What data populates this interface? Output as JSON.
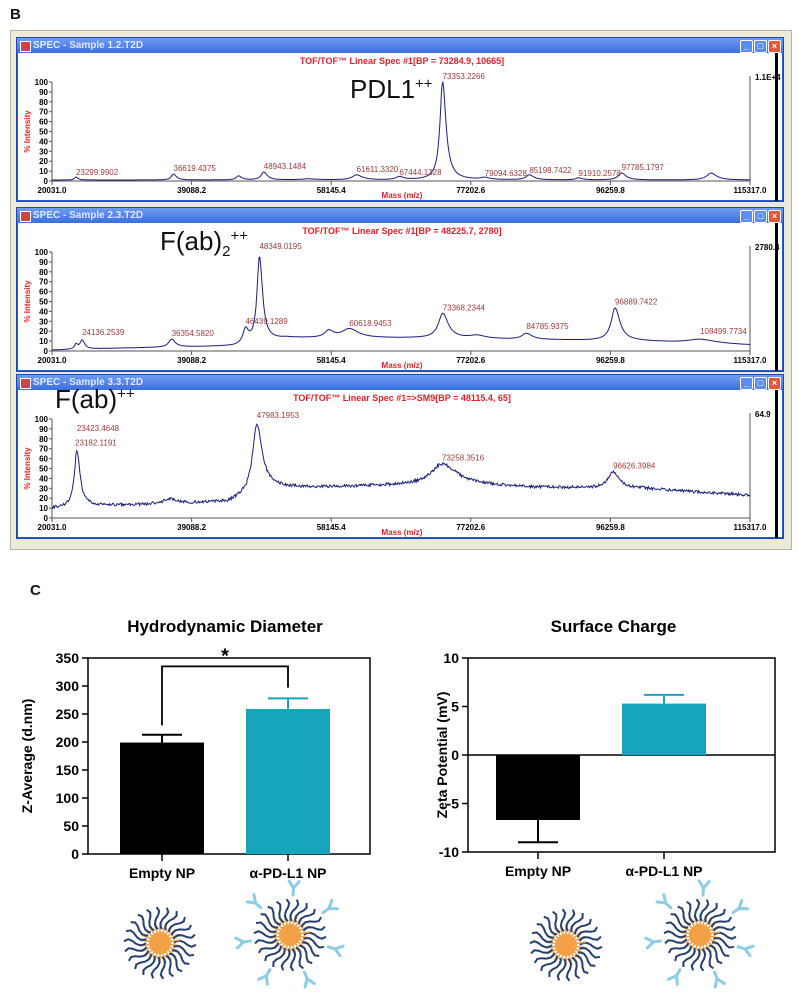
{
  "panel_letters": {
    "b": "B",
    "c": "C"
  },
  "spectra": [
    {
      "window_title": "SPEC - Sample 1.2.T2D",
      "plot_title": "TOF/TOF™ Linear Spec #1[BP = 73284.9, 10665]",
      "overlay_label": {
        "base": "PDL1",
        "sup": "++",
        "sub": ""
      },
      "right_scale": "1.1E+4",
      "ylabel": "% Intensity",
      "xlabel": "Mass (m/z)",
      "noise": 0,
      "peak_labels": [
        {
          "text": "23299.9902",
          "mass": 23300,
          "intensity": 3
        },
        {
          "text": "36619.4375",
          "mass": 36619,
          "intensity": 7
        },
        {
          "text": "48943.1484",
          "mass": 48943,
          "intensity": 9
        },
        {
          "text": "61611.3320",
          "mass": 61611,
          "intensity": 6
        },
        {
          "text": "67444.1328",
          "mass": 67444,
          "intensity": 3
        },
        {
          "text": "73353.2266",
          "mass": 73353,
          "intensity": 100
        },
        {
          "text": "79094.6328",
          "mass": 79094,
          "intensity": 2
        },
        {
          "text": "85198.7422",
          "mass": 85198,
          "intensity": 5
        },
        {
          "text": "91910.2578",
          "mass": 91910,
          "intensity": 2
        },
        {
          "text": "97785.1797",
          "mass": 97785,
          "intensity": 8
        }
      ]
    },
    {
      "window_title": "SPEC - Sample 2.3.T2D",
      "plot_title": "TOF/TOF™ Linear Spec #1[BP = 48225.7, 2780]",
      "overlay_label": {
        "base": "F(ab)",
        "sup": "++",
        "sub": "2"
      },
      "right_scale": "2780.4",
      "ylabel": "% Intensity",
      "xlabel": "Mass (m/z)",
      "noise": 0,
      "peak_labels": [
        {
          "text": "24136.2539",
          "mass": 24136,
          "intensity": 13
        },
        {
          "text": "36354.5820",
          "mass": 36354,
          "intensity": 12
        },
        {
          "text": "46439.1289",
          "mass": 46439,
          "intensity": 24
        },
        {
          "text": "48349.0195",
          "mass": 48349,
          "intensity": 100
        },
        {
          "text": "60618.9453",
          "mass": 60618,
          "intensity": 22
        },
        {
          "text": "73368.2344",
          "mass": 73368,
          "intensity": 38
        },
        {
          "text": "84785.9375",
          "mass": 84786,
          "intensity": 19
        },
        {
          "text": "96889.7422",
          "mass": 96890,
          "intensity": 44
        },
        {
          "text": "108499.7734",
          "mass": 108500,
          "intensity": 14
        }
      ]
    },
    {
      "window_title": "SPEC - Sample 3.3.T2D",
      "plot_title": "TOF/TOF™ Linear Spec #1=>SM9[BP = 48115.4, 65]",
      "overlay_label": {
        "base": "F(ab)",
        "sup": "++",
        "sub": ""
      },
      "right_scale": "64.9",
      "ylabel": "% Intensity",
      "xlabel": "Mass (m/z)",
      "noise": 1.5,
      "peak_labels": [
        {
          "text": "23423.4648",
          "mass": 23423,
          "intensity": 85
        },
        {
          "text": "23182.1191",
          "mass": 23182,
          "intensity": 70
        },
        {
          "text": "47983.1953",
          "mass": 47983,
          "intensity": 98
        },
        {
          "text": "73258.3516",
          "mass": 73258,
          "intensity": 55
        },
        {
          "text": "96626.3984",
          "mass": 96626,
          "intensity": 47
        }
      ]
    }
  ],
  "chart_data": [
    {
      "type": "line",
      "title": "TOF/TOF Linear Spec #1 — Sample 1.2 (PDL1++)",
      "xlabel": "Mass (m/z)",
      "ylabel": "% Intensity",
      "xlim": [
        20031.0,
        115317.0
      ],
      "ylim": [
        0,
        100
      ],
      "xticks": [
        "20031.0",
        "39088.2",
        "58145.4",
        "77202.6",
        "96259.8",
        "115317.0"
      ],
      "yticks": [
        "0",
        "10",
        "20",
        "30",
        "40",
        "50",
        "60",
        "70",
        "80",
        "90",
        "100"
      ],
      "baseline": [
        [
          20031,
          1
        ],
        [
          115317,
          1
        ]
      ],
      "peaks": [
        [
          23300,
          3,
          300
        ],
        [
          36619,
          6,
          450
        ],
        [
          45500,
          4,
          500
        ],
        [
          48943,
          8,
          550
        ],
        [
          55000,
          1,
          1500
        ],
        [
          61611,
          5,
          900
        ],
        [
          67444,
          3,
          700
        ],
        [
          73353,
          99,
          550
        ],
        [
          79094,
          2,
          800
        ],
        [
          85198,
          5,
          700
        ],
        [
          91910,
          2,
          600
        ],
        [
          97785,
          7,
          700
        ],
        [
          110000,
          7,
          900
        ]
      ]
    },
    {
      "type": "line",
      "title": "TOF/TOF Linear Spec #1 — Sample 2.3 (F(ab)2++)",
      "xlabel": "Mass (m/z)",
      "ylabel": "% Intensity",
      "xlim": [
        20031.0,
        115317.0
      ],
      "ylim": [
        0,
        100
      ],
      "xticks": [
        "20031.0",
        "39088.2",
        "58145.4",
        "77202.6",
        "96259.8",
        "115317.0"
      ],
      "yticks": [
        "0",
        "10",
        "20",
        "30",
        "40",
        "50",
        "60",
        "70",
        "80",
        "90",
        "100"
      ],
      "baseline": [
        [
          20031,
          1
        ],
        [
          30000,
          3
        ],
        [
          45000,
          5
        ],
        [
          52000,
          13
        ],
        [
          70000,
          13
        ],
        [
          80000,
          12
        ],
        [
          100000,
          10
        ],
        [
          115317,
          6
        ]
      ],
      "peaks": [
        [
          23300,
          5,
          300
        ],
        [
          24136,
          9,
          400
        ],
        [
          36354,
          8,
          600
        ],
        [
          46439,
          14,
          500
        ],
        [
          48349,
          86,
          500
        ],
        [
          57800,
          7,
          800
        ],
        [
          60618,
          9,
          1500
        ],
        [
          73368,
          25,
          900
        ],
        [
          78000,
          3,
          1500
        ],
        [
          84786,
          6,
          900
        ],
        [
          96890,
          33,
          800
        ],
        [
          108500,
          4,
          2500
        ]
      ]
    },
    {
      "type": "line",
      "title": "TOF/TOF Linear Spec #1=>SM9 — Sample 3.3 (F(ab)++)",
      "xlabel": "Mass (m/z)",
      "ylabel": "% Intensity",
      "xlim": [
        20031.0,
        115317.0
      ],
      "ylim": [
        0,
        100
      ],
      "xticks": [
        "20031.0",
        "39088.2",
        "58145.4",
        "77202.6",
        "96259.8",
        "115317.0"
      ],
      "yticks": [
        "0",
        "10",
        "20",
        "30",
        "40",
        "50",
        "60",
        "70",
        "80",
        "90",
        "100"
      ],
      "baseline": [
        [
          20031,
          10
        ],
        [
          22500,
          12
        ],
        [
          30000,
          13
        ],
        [
          44000,
          16
        ],
        [
          50000,
          30
        ],
        [
          62000,
          32
        ],
        [
          75000,
          35
        ],
        [
          85000,
          31
        ],
        [
          100000,
          30
        ],
        [
          115317,
          23
        ]
      ],
      "peaks": [
        [
          23423,
          56,
          500
        ],
        [
          36000,
          5,
          1200
        ],
        [
          47983,
          68,
          900
        ],
        [
          73258,
          20,
          2200
        ],
        [
          96626,
          16,
          1000
        ]
      ]
    },
    {
      "type": "bar",
      "title": "Hydrodynamic Diameter",
      "categories": [
        "Empty NP",
        "α-PD-L1 NP"
      ],
      "values": [
        199,
        259
      ],
      "errors": [
        14,
        19
      ],
      "colors": [
        "#000000",
        "#17A5BE"
      ],
      "xlabel": "",
      "ylabel": "Z-Average (d.nm)",
      "ylim": [
        0,
        350
      ],
      "yticks": [
        "0",
        "50",
        "100",
        "150",
        "200",
        "250",
        "300",
        "350"
      ],
      "significance": "*"
    },
    {
      "type": "bar",
      "title": "Surface Charge",
      "categories": [
        "Empty NP",
        "α-PD-L1 NP"
      ],
      "values": [
        -6.7,
        5.3
      ],
      "errors": [
        2.3,
        0.9
      ],
      "colors": [
        "#000000",
        "#17A5BE"
      ],
      "xlabel": "",
      "ylabel": "Zeta Potential (mV)",
      "ylim": [
        -10,
        10
      ],
      "yticks": [
        "-10",
        "-5",
        "0",
        "5",
        "10"
      ]
    }
  ],
  "nanoparticles": [
    {
      "kind": "empty"
    },
    {
      "kind": "antibody"
    },
    {
      "kind": "empty"
    },
    {
      "kind": "antibody"
    }
  ],
  "colors": {
    "spectrum_line": "#1a1f7a",
    "annotation_red": "#e0202a",
    "peak_label": "#9b3a3a",
    "teal": "#17A5BE",
    "np_core": "#F4A047",
    "np_chain": "#25406E",
    "antibody": "#8CCDE6"
  }
}
